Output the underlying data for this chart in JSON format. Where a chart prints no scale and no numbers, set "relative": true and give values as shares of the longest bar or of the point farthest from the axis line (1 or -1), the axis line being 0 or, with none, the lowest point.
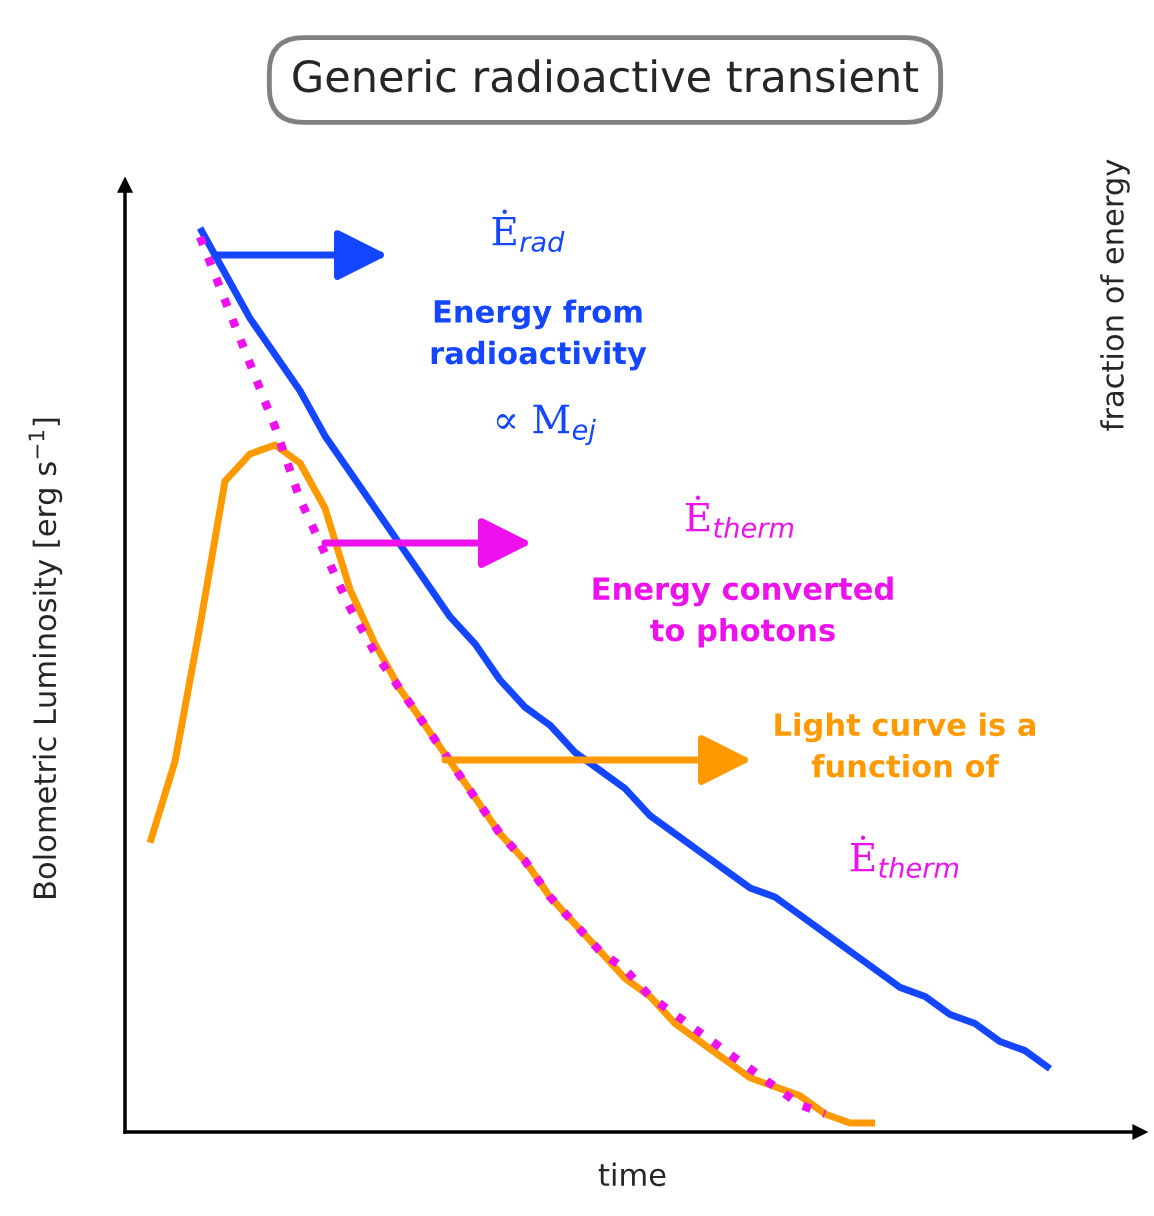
{
  "chart_data": {
    "type": "line",
    "title": "Generic radioactive transient",
    "xlabel": "time",
    "ylabel": "Bolometric Luminosity [erg s$^{−1}$]",
    "y2label": "fraction of energy",
    "relative": true,
    "tick_labels": false,
    "categories": [
      null,
      null,
      null,
      null,
      null,
      null,
      null,
      null,
      null,
      null,
      null,
      null,
      null,
      null,
      null,
      null,
      null,
      null,
      null,
      null,
      null,
      null,
      null,
      null,
      null,
      null,
      null,
      null,
      null,
      null,
      null,
      null,
      null,
      null,
      null,
      null,
      null,
      null
    ],
    "series": [
      {
        "color": "#1446ff",
        "line_style": "solid",
        "values": [
          null,
          null,
          1.0,
          0.95,
          0.9,
          0.86,
          0.82,
          0.77,
          0.73,
          0.69,
          0.65,
          0.61,
          0.57,
          0.54,
          0.5,
          0.47,
          0.45,
          0.42,
          0.4,
          0.38,
          0.35,
          0.33,
          0.31,
          0.29,
          0.27,
          0.26,
          0.24,
          0.22,
          0.2,
          0.18,
          0.16,
          0.15,
          0.13,
          0.12,
          0.1,
          0.09,
          0.07,
          null
        ]
      },
      {
        "color": "#ff9900",
        "line_style": "solid",
        "values": [
          0.32,
          0.41,
          0.56,
          0.72,
          0.75,
          0.76,
          0.74,
          0.69,
          0.6,
          0.54,
          0.49,
          0.45,
          0.41,
          0.37,
          0.33,
          0.3,
          0.26,
          0.23,
          0.2,
          0.17,
          0.15,
          0.12,
          0.1,
          0.08,
          0.06,
          0.05,
          0.04,
          0.02,
          0.01,
          0.01,
          null,
          null,
          null,
          null,
          null,
          null,
          null,
          null
        ]
      },
      {
        "color": "#ee11ee",
        "line_style": "dotted",
        "values": [
          null,
          null,
          0.99,
          0.92,
          0.85,
          0.78,
          0.7,
          0.64,
          0.58,
          0.53,
          0.49,
          0.45,
          0.41,
          0.37,
          0.33,
          0.3,
          0.26,
          0.23,
          0.2,
          0.18,
          0.15,
          0.13,
          0.11,
          0.09,
          0.07,
          0.05,
          0.03,
          0.02,
          null,
          null,
          null,
          null,
          null,
          null,
          null,
          null,
          null,
          null
        ]
      }
    ],
    "annotations": [
      "Ė$_{rad}$",
      "Energy from\nradioactivity",
      "∝ M$_{ej}$",
      "Ė$_{therm}$",
      "Energy converted\nto photons",
      "Light curve is a\nfunction of",
      "Ė$_{therm}$"
    ]
  }
}
